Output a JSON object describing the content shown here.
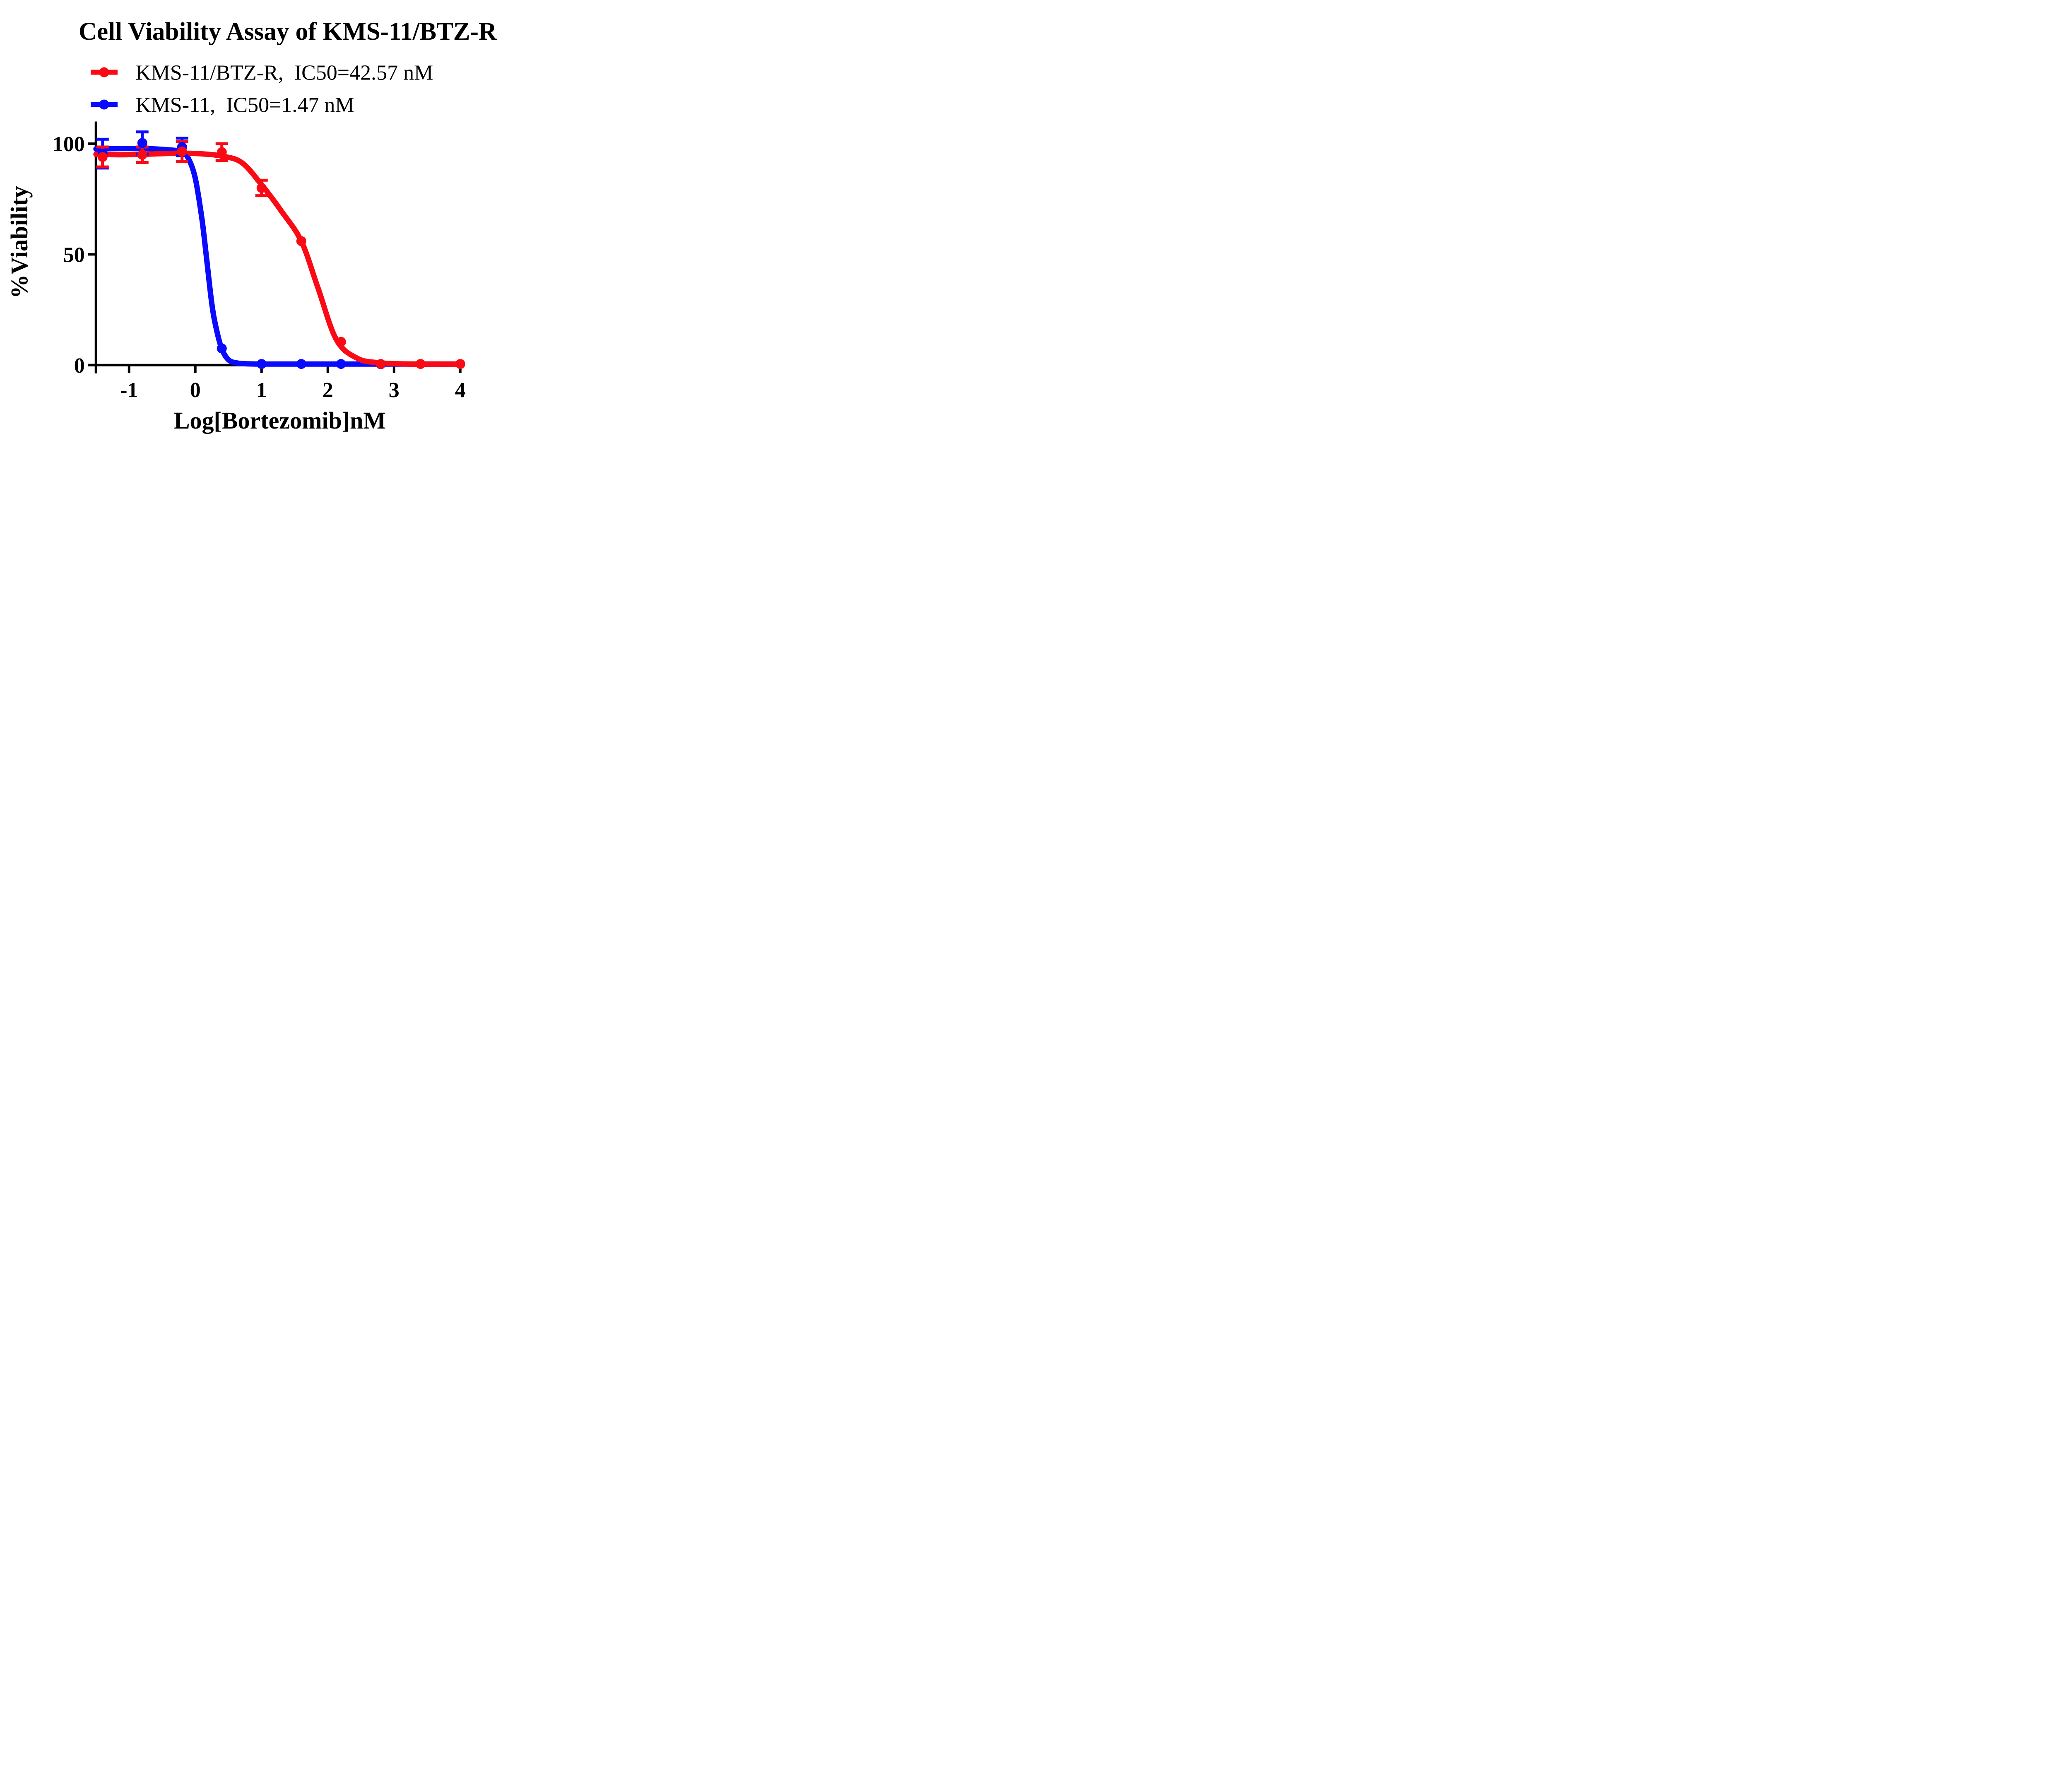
{
  "title": "Cell Viability Assay of KMS-11/BTZ-R",
  "legend": [
    {
      "label": "KMS-11/BTZ-R,  IC50=42.57 nM",
      "color": "#FA0A14",
      "marker": "circle-on-line"
    },
    {
      "label": "KMS-11,  IC50=1.47 nM",
      "color": "#0A0AFF",
      "marker": "circle-on-line"
    }
  ],
  "chart_data": {
    "type": "line",
    "title": "Cell Viability Assay of KMS-11/BTZ-R",
    "xlabel": "Log[Bortezomib]nM",
    "ylabel": "%Viability",
    "xlim": [
      -1.5,
      4.05
    ],
    "ylim": [
      0,
      110
    ],
    "x_ticks": [
      -1,
      0,
      1,
      2,
      3,
      4
    ],
    "x_tick_labels": [
      "-1",
      "0",
      "1",
      "2",
      "3",
      "4"
    ],
    "y_ticks": [
      0,
      50,
      100
    ],
    "y_tick_labels": [
      "0",
      "50",
      "100"
    ],
    "grid": false,
    "legend_position": "top-left",
    "series": [
      {
        "name": "KMS-11/BTZ-R",
        "ic50": "42.57 nM",
        "color": "#FA0A14",
        "points": [
          {
            "x": -1.4,
            "y": 94.0,
            "err": 4.5
          },
          {
            "x": -0.8,
            "y": 95.0,
            "err": 3.5
          },
          {
            "x": -0.2,
            "y": 96.5,
            "err": 4.5
          },
          {
            "x": 0.4,
            "y": 96.2,
            "err": 3.8
          },
          {
            "x": 1.0,
            "y": 80.0,
            "err": 3.5
          },
          {
            "x": 1.6,
            "y": 56.0,
            "err": 0
          },
          {
            "x": 2.2,
            "y": 10.5,
            "err": 0
          },
          {
            "x": 2.8,
            "y": 0.5,
            "err": 0
          },
          {
            "x": 3.4,
            "y": 0.5,
            "err": 0
          },
          {
            "x": 4.0,
            "y": 0.5,
            "err": 0
          }
        ],
        "fit_curve": [
          [
            -1.5,
            95.2
          ],
          [
            -1.15,
            95.0
          ],
          [
            -0.8,
            95.2
          ],
          [
            -0.5,
            95.5
          ],
          [
            -0.2,
            95.7
          ],
          [
            0.1,
            95.4
          ],
          [
            0.4,
            94.4
          ],
          [
            0.7,
            91.5
          ],
          [
            1.0,
            81.5
          ],
          [
            1.3,
            69.5
          ],
          [
            1.6,
            56.0
          ],
          [
            1.85,
            35.0
          ],
          [
            2.13,
            11.5
          ],
          [
            2.45,
            3.0
          ],
          [
            2.8,
            1.0
          ],
          [
            3.2,
            0.5
          ],
          [
            3.6,
            0.45
          ],
          [
            4.0,
            0.45
          ]
        ]
      },
      {
        "name": "KMS-11",
        "ic50": "1.47 nM",
        "color": "#0A0AFF",
        "points": [
          {
            "x": -1.4,
            "y": 95.5,
            "err": 6.5
          },
          {
            "x": -0.8,
            "y": 100.3,
            "err": 5
          },
          {
            "x": -0.2,
            "y": 98.5,
            "err": 4
          },
          {
            "x": 0.4,
            "y": 7.5,
            "err": 0
          },
          {
            "x": 1.0,
            "y": 0.5,
            "err": 0
          },
          {
            "x": 1.6,
            "y": 0.5,
            "err": 0
          },
          {
            "x": 2.2,
            "y": 0.5,
            "err": 0
          },
          {
            "x": 2.8,
            "y": 0.4,
            "err": 0
          }
        ],
        "fit_curve": [
          [
            -1.5,
            97.6
          ],
          [
            -1.1,
            97.8
          ],
          [
            -0.7,
            97.7
          ],
          [
            -0.4,
            97.2
          ],
          [
            -0.2,
            96.3
          ],
          [
            -0.1,
            93.0
          ],
          [
            0.0,
            84.3
          ],
          [
            0.1,
            66.0
          ],
          [
            0.167,
            49.0
          ],
          [
            0.25,
            27.5
          ],
          [
            0.32,
            16.0
          ],
          [
            0.4,
            7.3
          ],
          [
            0.5,
            2.4
          ],
          [
            0.62,
            1.0
          ],
          [
            0.8,
            0.55
          ],
          [
            1.1,
            0.45
          ],
          [
            1.6,
            0.45
          ],
          [
            2.2,
            0.45
          ],
          [
            3.0,
            0.45
          ],
          [
            3.92,
            0.45
          ]
        ]
      }
    ]
  }
}
